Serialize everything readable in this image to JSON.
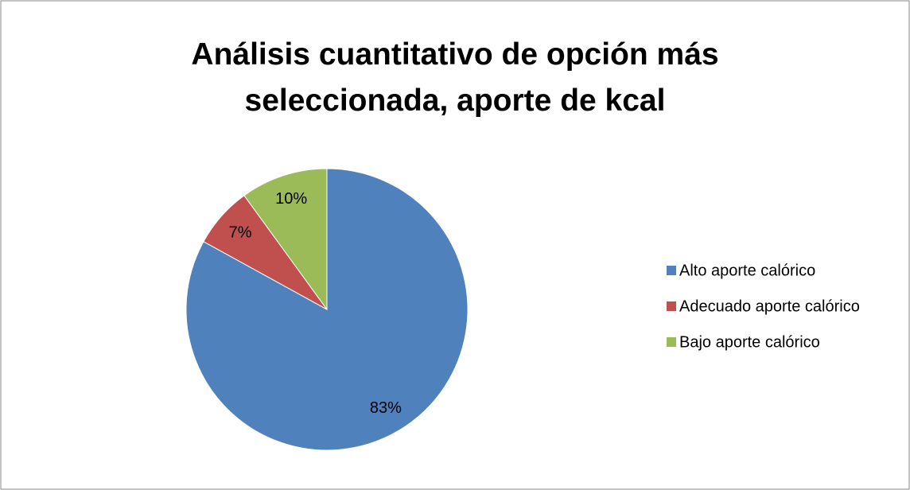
{
  "chart_data": {
    "type": "pie",
    "title": "Análisis cuantitativo de opción más seleccionada, aporte de kcal",
    "categories": [
      "Alto aporte calórico",
      "Adecuado aporte calórico",
      "Bajo aporte calórico"
    ],
    "values": [
      83,
      7,
      10
    ],
    "value_labels": [
      "83%",
      "7%",
      "10%"
    ],
    "colors": [
      "#4f81bd",
      "#c0504d",
      "#9bbb59"
    ],
    "legend": "right"
  }
}
